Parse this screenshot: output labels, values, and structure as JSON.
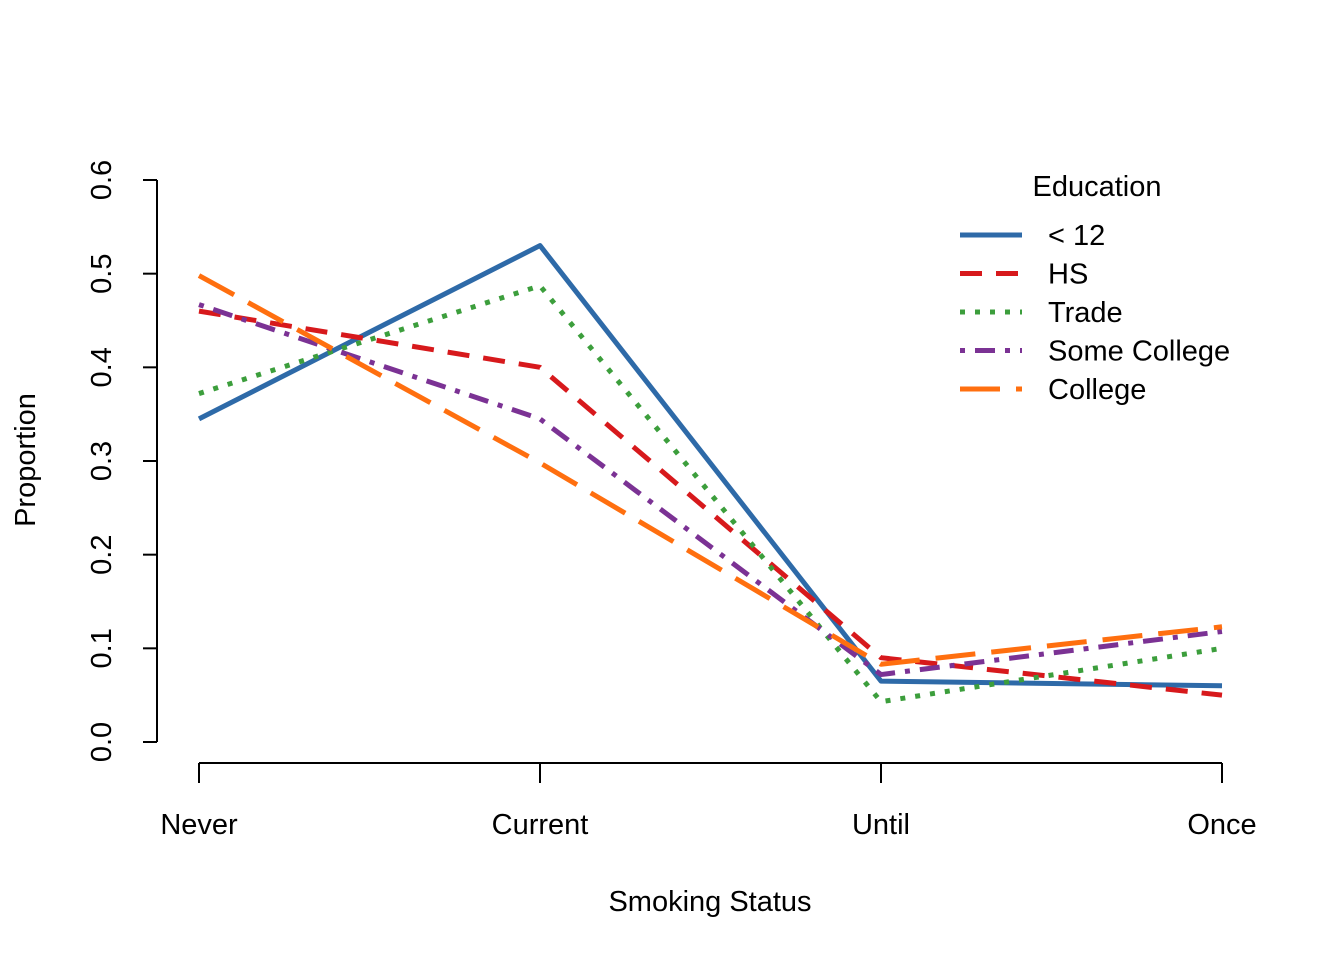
{
  "chart_data": {
    "type": "line",
    "title": "",
    "xlabel": "Smoking Status",
    "ylabel": "Proportion",
    "categories": [
      "Never",
      "Current",
      "Until",
      "Once"
    ],
    "ylim": [
      0,
      0.6
    ],
    "yticks": [
      "0.0",
      "0.1",
      "0.2",
      "0.3",
      "0.4",
      "0.5",
      "0.6"
    ],
    "grid": false,
    "legend": {
      "title": "Education",
      "position": "top-right"
    },
    "series": [
      {
        "name": "< 12",
        "color": "#2e6aa8",
        "style": "solid",
        "values": [
          0.345,
          0.53,
          0.065,
          0.06
        ]
      },
      {
        "name": "HS",
        "color": "#d7191c",
        "style": "dashed",
        "values": [
          0.46,
          0.4,
          0.09,
          0.05
        ]
      },
      {
        "name": "Trade",
        "color": "#3c9e3c",
        "style": "dotted",
        "values": [
          0.372,
          0.487,
          0.043,
          0.1
        ]
      },
      {
        "name": "Some College",
        "color": "#7b3294",
        "style": "dotdash",
        "values": [
          0.467,
          0.345,
          0.072,
          0.118
        ]
      },
      {
        "name": "College",
        "color": "#ff6f0f",
        "style": "longdash",
        "values": [
          0.498,
          0.298,
          0.083,
          0.123
        ]
      }
    ]
  }
}
